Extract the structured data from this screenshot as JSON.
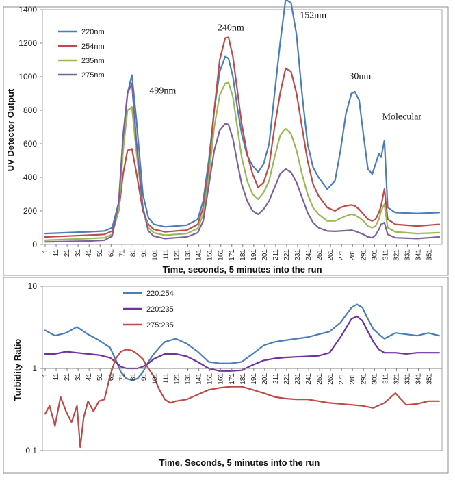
{
  "chart_data": [
    {
      "type": "line",
      "xlabel": "Time, seconds, 5 minutes into the run",
      "ylabel": "UV Detector Output",
      "ylim": [
        0,
        1400
      ],
      "yticks": [
        0,
        200,
        400,
        600,
        800,
        1000,
        1200,
        1400
      ],
      "xlim": [
        1,
        360
      ],
      "xticks": [
        1,
        11,
        21,
        31,
        41,
        51,
        61,
        71,
        81,
        91,
        101,
        111,
        121,
        131,
        141,
        151,
        161,
        171,
        181,
        191,
        201,
        211,
        221,
        231,
        241,
        251,
        261,
        271,
        281,
        291,
        301,
        311,
        321,
        331,
        341,
        351
      ],
      "legend_position": "top-left",
      "annotations": [
        {
          "text": "499nm",
          "x": 96,
          "y": 900
        },
        {
          "text": "240nm",
          "x": 158,
          "y": 1275
        },
        {
          "text": "152nm",
          "x": 233,
          "y": 1350
        },
        {
          "text": "30nm",
          "x": 278,
          "y": 985
        },
        {
          "text": "Molecular",
          "x": 308,
          "y": 745
        }
      ],
      "series": [
        {
          "name": "220nm",
          "color": "#4a7ebb",
          "x": [
            1,
            20,
            40,
            55,
            62,
            68,
            72,
            76,
            80,
            84,
            90,
            95,
            100,
            110,
            120,
            130,
            140,
            145,
            150,
            155,
            160,
            165,
            168,
            172,
            176,
            180,
            185,
            190,
            195,
            200,
            205,
            210,
            215,
            220,
            225,
            230,
            235,
            240,
            245,
            250,
            258,
            265,
            270,
            275,
            280,
            283,
            287,
            291,
            295,
            299,
            302,
            305,
            307,
            310,
            313,
            320,
            340,
            360
          ],
          "y": [
            65,
            70,
            75,
            80,
            100,
            250,
            600,
            900,
            1010,
            750,
            300,
            160,
            120,
            105,
            110,
            115,
            150,
            260,
            500,
            800,
            1030,
            1120,
            1110,
            1000,
            820,
            660,
            530,
            470,
            430,
            480,
            600,
            900,
            1200,
            1460,
            1440,
            1250,
            900,
            600,
            460,
            400,
            330,
            380,
            560,
            780,
            900,
            910,
            860,
            650,
            450,
            420,
            480,
            540,
            520,
            620,
            220,
            190,
            185,
            190
          ]
        },
        {
          "name": "254nm",
          "color": "#be4b48",
          "x": [
            1,
            20,
            40,
            55,
            62,
            68,
            72,
            76,
            80,
            84,
            90,
            95,
            100,
            110,
            120,
            130,
            140,
            145,
            150,
            155,
            160,
            165,
            168,
            172,
            176,
            180,
            185,
            190,
            195,
            200,
            205,
            210,
            215,
            220,
            225,
            230,
            235,
            240,
            245,
            250,
            258,
            265,
            270,
            275,
            280,
            283,
            287,
            291,
            295,
            299,
            302,
            305,
            307,
            310,
            313,
            320,
            340,
            360
          ],
          "y": [
            45,
            50,
            55,
            60,
            80,
            200,
            420,
            560,
            570,
            430,
            200,
            120,
            90,
            75,
            80,
            85,
            120,
            220,
            450,
            800,
            1100,
            1230,
            1235,
            1120,
            920,
            720,
            540,
            420,
            340,
            370,
            470,
            700,
            900,
            1050,
            1030,
            900,
            700,
            500,
            360,
            290,
            220,
            200,
            220,
            230,
            235,
            230,
            210,
            180,
            150,
            140,
            150,
            190,
            230,
            330,
            150,
            120,
            110,
            120
          ]
        },
        {
          "name": "235nm",
          "color": "#98b954",
          "x": [
            1,
            20,
            40,
            55,
            62,
            68,
            72,
            76,
            80,
            84,
            90,
            95,
            100,
            110,
            120,
            130,
            140,
            145,
            150,
            155,
            160,
            165,
            168,
            172,
            176,
            180,
            185,
            190,
            195,
            200,
            205,
            210,
            215,
            220,
            225,
            230,
            235,
            240,
            245,
            250,
            258,
            265,
            270,
            275,
            280,
            283,
            287,
            291,
            295,
            299,
            302,
            305,
            307,
            310,
            313,
            320,
            340,
            360
          ],
          "y": [
            25,
            30,
            35,
            40,
            60,
            200,
            560,
            800,
            820,
            560,
            220,
            100,
            70,
            55,
            60,
            65,
            95,
            180,
            400,
            700,
            890,
            960,
            965,
            880,
            700,
            520,
            380,
            300,
            270,
            310,
            380,
            520,
            650,
            690,
            660,
            560,
            420,
            300,
            220,
            180,
            140,
            140,
            155,
            170,
            180,
            175,
            160,
            140,
            110,
            100,
            110,
            150,
            200,
            240,
            100,
            75,
            65,
            70
          ]
        },
        {
          "name": "275nm",
          "color": "#7d60a0",
          "x": [
            1,
            20,
            40,
            55,
            62,
            68,
            72,
            76,
            80,
            84,
            90,
            95,
            100,
            110,
            120,
            130,
            140,
            145,
            150,
            155,
            160,
            165,
            168,
            172,
            176,
            180,
            185,
            190,
            195,
            200,
            205,
            210,
            215,
            220,
            225,
            230,
            235,
            240,
            245,
            250,
            258,
            265,
            270,
            275,
            280,
            283,
            287,
            291,
            295,
            299,
            302,
            305,
            307,
            310,
            313,
            320,
            340,
            360
          ],
          "y": [
            15,
            18,
            20,
            25,
            50,
            250,
            650,
            900,
            960,
            620,
            220,
            80,
            50,
            35,
            40,
            45,
            70,
            140,
            350,
            560,
            680,
            720,
            715,
            630,
            490,
            360,
            260,
            200,
            180,
            210,
            260,
            340,
            420,
            450,
            430,
            370,
            280,
            190,
            130,
            100,
            80,
            78,
            80,
            82,
            85,
            80,
            70,
            60,
            45,
            40,
            55,
            90,
            120,
            130,
            60,
            40,
            35,
            45
          ]
        }
      ]
    },
    {
      "type": "line",
      "xlabel": "Time, Seconds, 5 minutes into the run",
      "ylabel": "Turbidity Ratio",
      "yscale": "log",
      "ylim": [
        0.1,
        10
      ],
      "yticks": [
        0.1,
        1,
        10
      ],
      "xlim": [
        1,
        360
      ],
      "xticks": [
        1,
        11,
        21,
        31,
        41,
        51,
        61,
        71,
        81,
        91,
        101,
        111,
        121,
        131,
        141,
        151,
        161,
        171,
        181,
        191,
        201,
        211,
        221,
        231,
        241,
        251,
        261,
        271,
        281,
        291,
        301,
        311,
        321,
        331,
        341,
        351
      ],
      "legend_position": "top-center",
      "series": [
        {
          "name": "220:254",
          "color": "#4a7ebb",
          "x": [
            1,
            10,
            20,
            30,
            40,
            50,
            60,
            65,
            70,
            75,
            80,
            85,
            90,
            95,
            100,
            105,
            110,
            120,
            130,
            140,
            150,
            160,
            170,
            180,
            190,
            200,
            210,
            220,
            230,
            240,
            250,
            260,
            270,
            280,
            285,
            290,
            295,
            300,
            305,
            310,
            320,
            330,
            340,
            350,
            360
          ],
          "y": [
            2.9,
            2.5,
            2.7,
            3.2,
            2.6,
            2.2,
            1.8,
            1.3,
            0.9,
            0.75,
            0.72,
            0.75,
            0.9,
            1.2,
            1.5,
            1.8,
            2.1,
            2.3,
            2.0,
            1.6,
            1.2,
            1.15,
            1.15,
            1.2,
            1.5,
            1.9,
            2.1,
            2.2,
            2.3,
            2.4,
            2.6,
            2.8,
            3.6,
            5.5,
            6.0,
            5.5,
            4.0,
            3.0,
            2.6,
            2.3,
            2.7,
            2.6,
            2.5,
            2.7,
            2.5
          ]
        },
        {
          "name": "220:235",
          "color": "#7030a0",
          "x": [
            1,
            10,
            20,
            30,
            40,
            50,
            60,
            65,
            70,
            75,
            80,
            85,
            90,
            95,
            100,
            105,
            110,
            120,
            130,
            140,
            150,
            160,
            170,
            180,
            190,
            200,
            210,
            220,
            230,
            240,
            250,
            260,
            270,
            280,
            285,
            290,
            295,
            300,
            305,
            310,
            320,
            330,
            340,
            350,
            360
          ],
          "y": [
            1.5,
            1.5,
            1.6,
            1.55,
            1.5,
            1.45,
            1.35,
            1.2,
            1.05,
            1.0,
            1.0,
            1.0,
            1.05,
            1.15,
            1.3,
            1.4,
            1.5,
            1.5,
            1.4,
            1.2,
            1.0,
            0.93,
            0.93,
            0.95,
            1.1,
            1.25,
            1.32,
            1.36,
            1.38,
            1.4,
            1.42,
            1.55,
            2.4,
            4.0,
            4.3,
            3.8,
            2.8,
            2.1,
            1.7,
            1.55,
            1.55,
            1.5,
            1.55,
            1.55,
            1.55
          ]
        },
        {
          "name": "275:235",
          "color": "#be4b48",
          "x": [
            1,
            5,
            10,
            15,
            20,
            25,
            30,
            33,
            36,
            40,
            45,
            50,
            55,
            60,
            65,
            70,
            75,
            80,
            85,
            90,
            95,
            100,
            105,
            110,
            115,
            120,
            130,
            140,
            150,
            160,
            170,
            180,
            190,
            200,
            210,
            220,
            230,
            240,
            250,
            260,
            270,
            280,
            290,
            300,
            310,
            320,
            330,
            340,
            350,
            360
          ],
          "y": [
            0.28,
            0.35,
            0.2,
            0.45,
            0.3,
            0.22,
            0.35,
            0.11,
            0.25,
            0.4,
            0.3,
            0.4,
            0.42,
            0.8,
            1.3,
            1.6,
            1.7,
            1.65,
            1.5,
            1.3,
            1.0,
            0.8,
            0.55,
            0.42,
            0.38,
            0.4,
            0.42,
            0.48,
            0.55,
            0.58,
            0.6,
            0.6,
            0.55,
            0.5,
            0.45,
            0.43,
            0.42,
            0.42,
            0.4,
            0.38,
            0.37,
            0.36,
            0.35,
            0.33,
            0.38,
            0.5,
            0.36,
            0.37,
            0.4,
            0.4
          ]
        }
      ]
    }
  ]
}
